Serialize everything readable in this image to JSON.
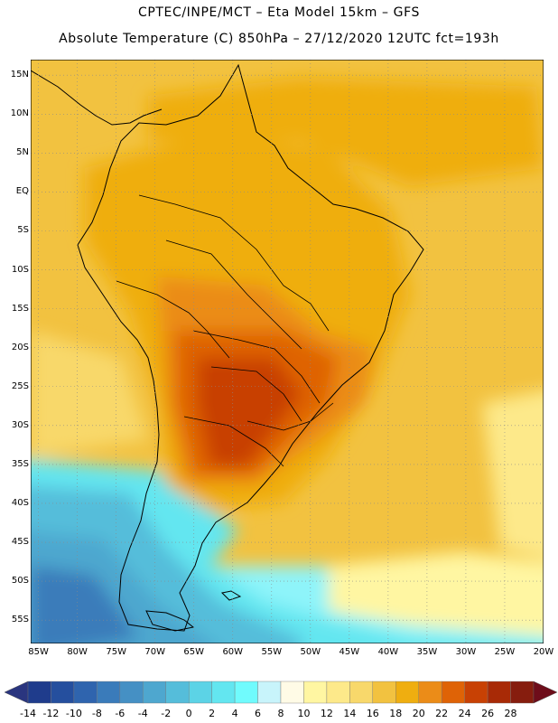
{
  "title": {
    "line1": "CPTEC/INPE/MCT –  Eta Model 15km – GFS",
    "line2": "Absolute Temperature (C) 850hPa – 27/12/2020 12UTC fct=193h"
  },
  "map": {
    "region": "South America",
    "lat_labels": [
      "15N",
      "10N",
      "5N",
      "EQ",
      "5S",
      "10S",
      "15S",
      "20S",
      "25S",
      "30S",
      "35S",
      "40S",
      "45S",
      "50S",
      "55S"
    ],
    "lat_values": [
      15,
      10,
      5,
      0,
      -5,
      -10,
      -15,
      -20,
      -25,
      -30,
      -35,
      -40,
      -45,
      -50,
      -55
    ],
    "lon_labels": [
      "85W",
      "80W",
      "75W",
      "70W",
      "65W",
      "60W",
      "55W",
      "50W",
      "45W",
      "40W",
      "35W",
      "30W",
      "25W",
      "20W"
    ],
    "lon_values": [
      -85,
      -80,
      -75,
      -70,
      -65,
      -60,
      -55,
      -50,
      -45,
      -40,
      -35,
      -30,
      -25,
      -20
    ],
    "lat_range": [
      -58,
      17
    ],
    "lon_range": [
      -86,
      -20
    ]
  },
  "colorbar": {
    "labels": [
      "-14",
      "-12",
      "-10",
      "-8",
      "-6",
      "-4",
      "-2",
      "0",
      "2",
      "4",
      "6",
      "8",
      "10",
      "12",
      "14",
      "16",
      "18",
      "20",
      "22",
      "24",
      "26",
      "28"
    ],
    "colors": [
      "#1f3c8c",
      "#254f9e",
      "#2f64ae",
      "#3a7bba",
      "#4590c4",
      "#4ea7cf",
      "#55bdda",
      "#5cd3e6",
      "#63e6f0",
      "#70fbfd",
      "#c8f4fb",
      "#fffbe6",
      "#fff6a2",
      "#fde98a",
      "#f8d86b",
      "#f2c240",
      "#efae10",
      "#eb8c18",
      "#df6306",
      "#c84104",
      "#a82a06",
      "#861d0e"
    ],
    "left_color": "#2a357f",
    "right_color": "#6e0d1a"
  },
  "chart_data": {
    "type": "heatmap",
    "title": "Absolute Temperature (C) 850hPa – 27/12/2020 12UTC fct=193h",
    "variable": "Absolute Temperature",
    "units": "C",
    "level": "850hPa",
    "run": "27/12/2020 12UTC",
    "forecast": "fct=193h",
    "color_levels": [
      -14,
      -12,
      -10,
      -8,
      -6,
      -4,
      -2,
      0,
      2,
      4,
      6,
      8,
      10,
      12,
      14,
      16,
      18,
      20,
      22,
      24,
      26,
      28
    ],
    "xlim": [
      -86,
      -20
    ],
    "ylim": [
      -58,
      17
    ],
    "summary": "Warmest (24–26 C) over Paraguay, northern Argentina and southern Brazil; 18–22 C over most of the tropical continent; cold (0 to -8 C) south of 40S around southern Patagonia and the Southern Ocean."
  }
}
